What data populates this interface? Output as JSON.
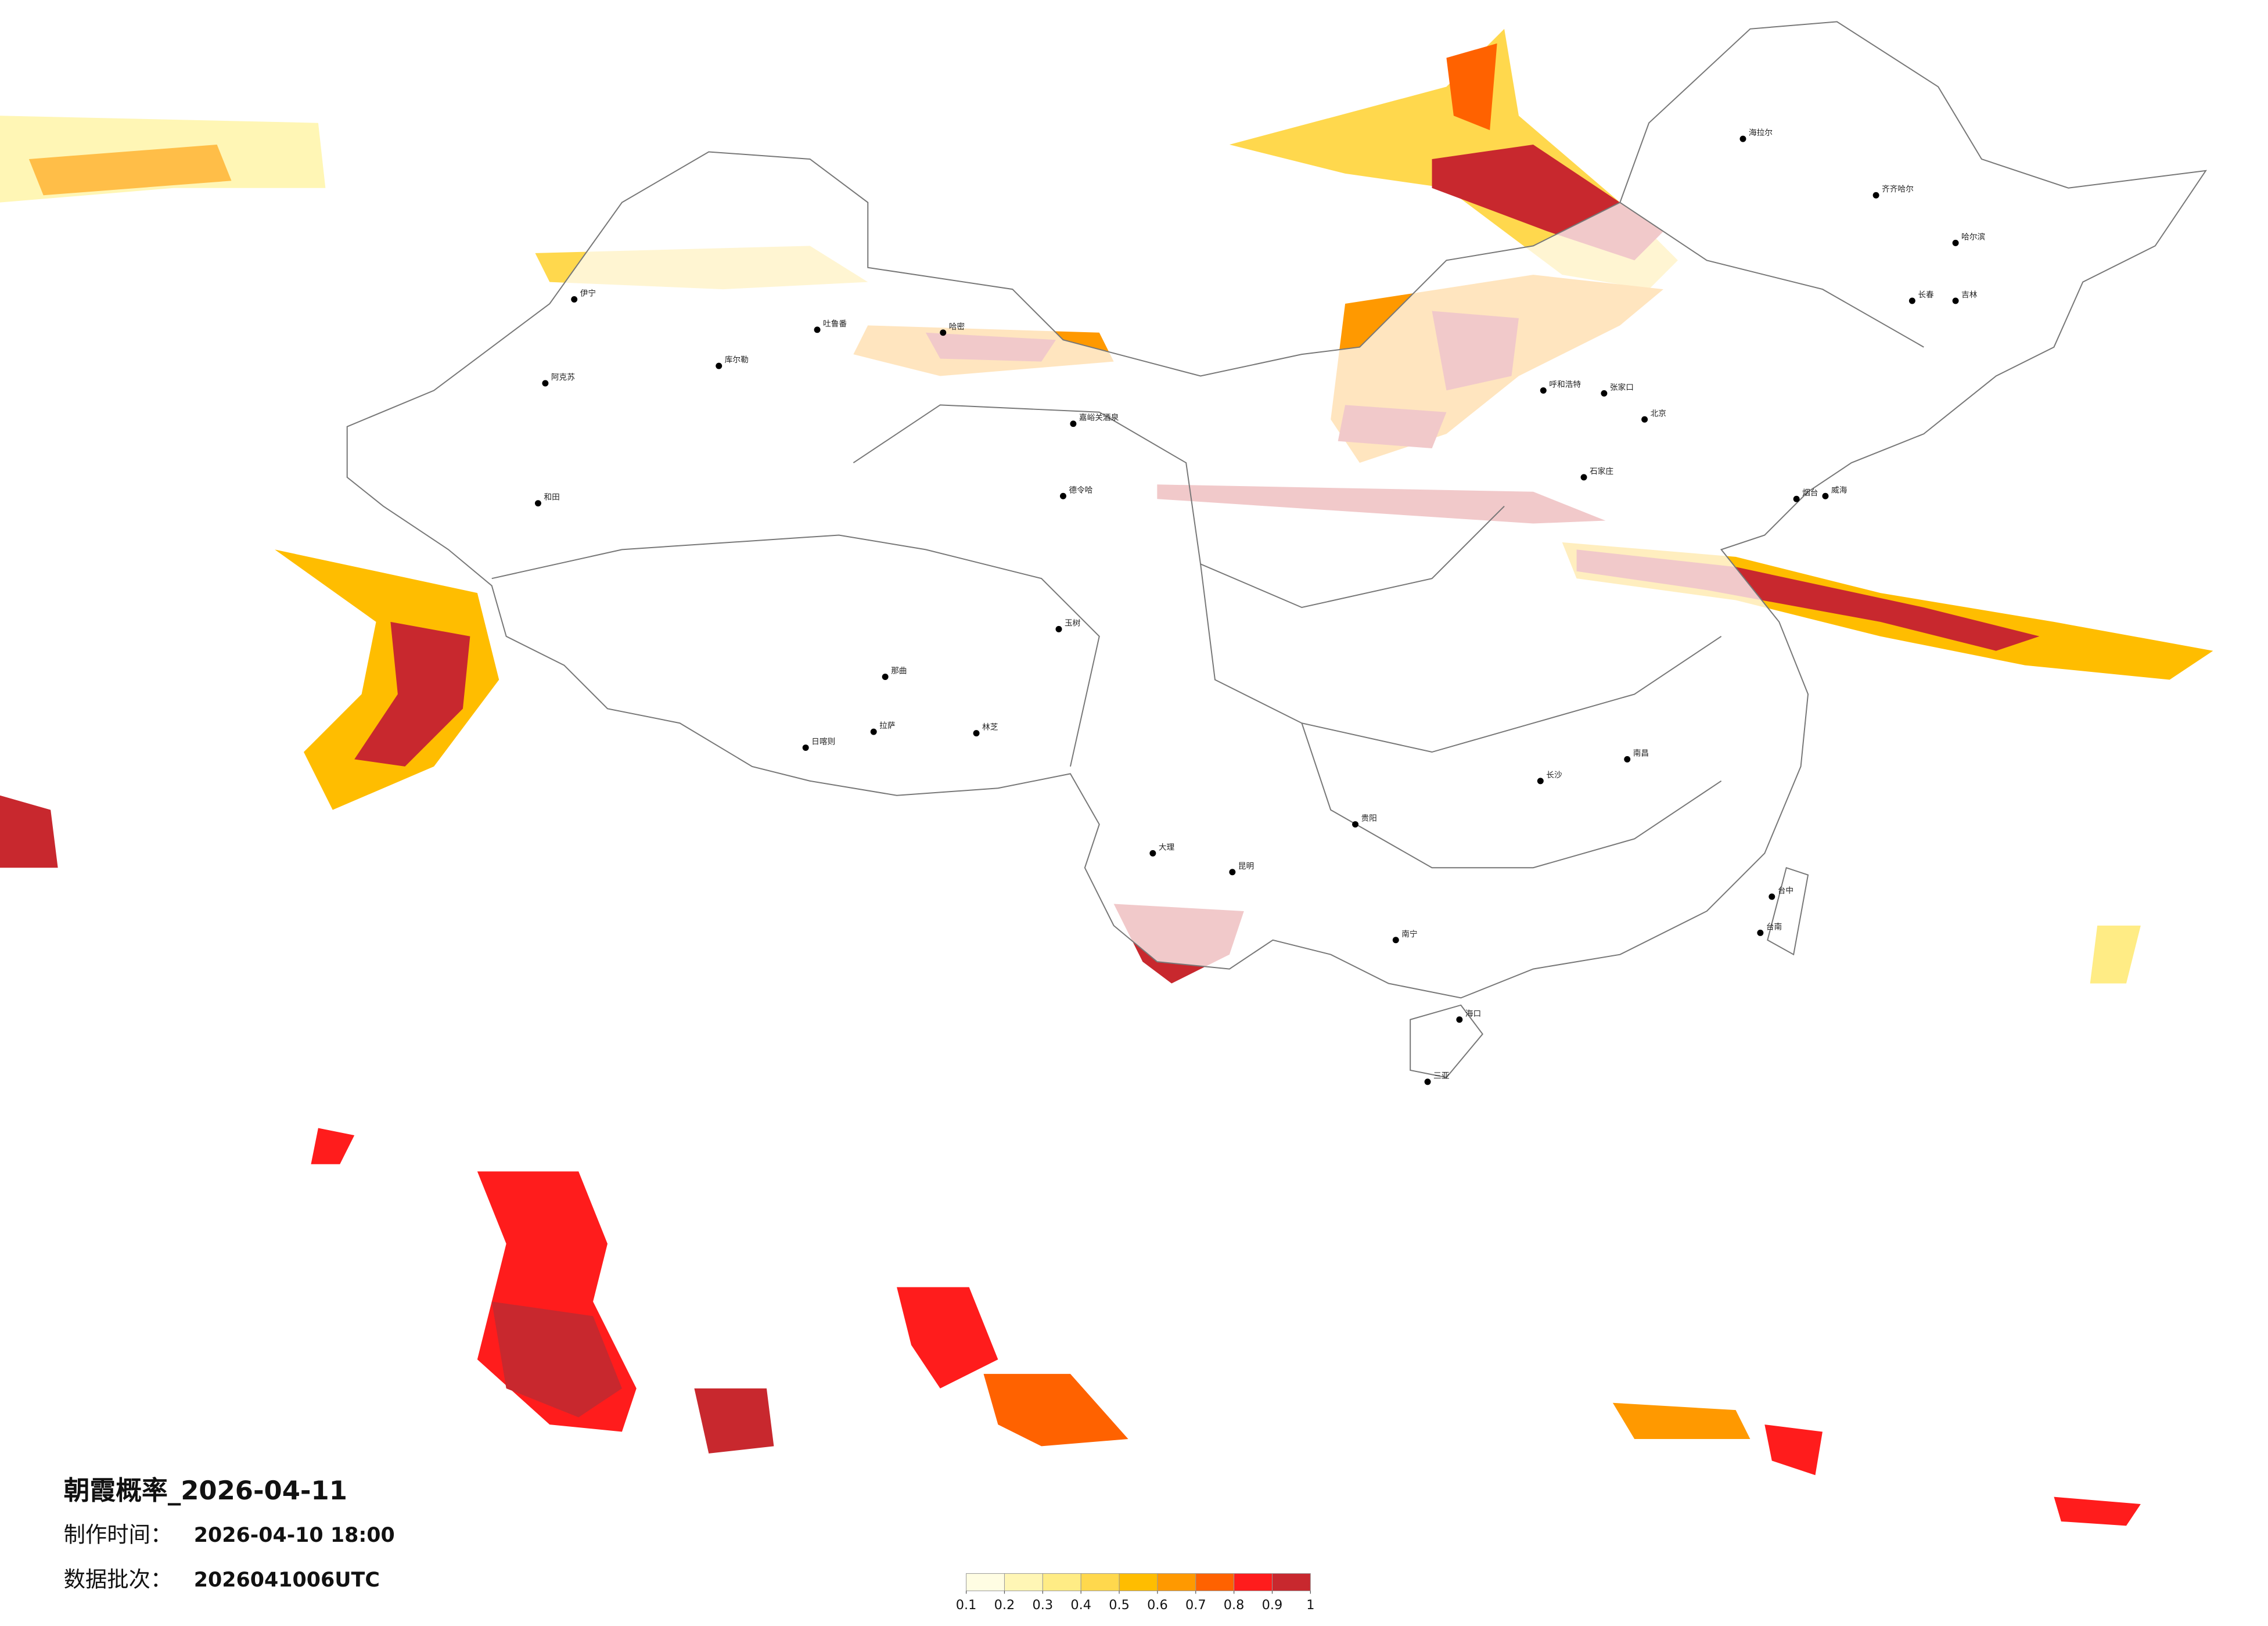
{
  "title": "朝霞概率_2026-04-11",
  "made_label": "制作时间：",
  "made_time": "2026-04-10 18:00",
  "batch_label": "数据批次：",
  "batch": "2026041006UTC",
  "colorbar": {
    "ticks": [
      0.1,
      0.2,
      0.3,
      0.4,
      0.5,
      0.6,
      0.7,
      0.8,
      0.9,
      1
    ],
    "colors": [
      "#fffde3",
      "#fff6b5",
      "#ffec85",
      "#ffd84d",
      "#ffbd00",
      "#ff9900",
      "#ff6200",
      "#ff1c1c",
      "#c8282e"
    ]
  },
  "cities": [
    "伊宁",
    "阿克苏",
    "和田",
    "库尔勒",
    "吐鲁番",
    "哈密",
    "嘉峪关酒泉",
    "德令哈",
    "日喀则",
    "拉萨",
    "那曲",
    "林芝",
    "玉树",
    "海拉尔",
    "齐齐哈尔",
    "哈尔滨",
    "长春",
    "吉林",
    "呼和浩特",
    "张家口",
    "北京",
    "石家庄",
    "长沙",
    "南昌",
    "台中",
    "台南",
    "贵阳",
    "昆明",
    "大理",
    "南宁",
    "海口",
    "三亚",
    "烟台",
    "威海"
  ]
}
